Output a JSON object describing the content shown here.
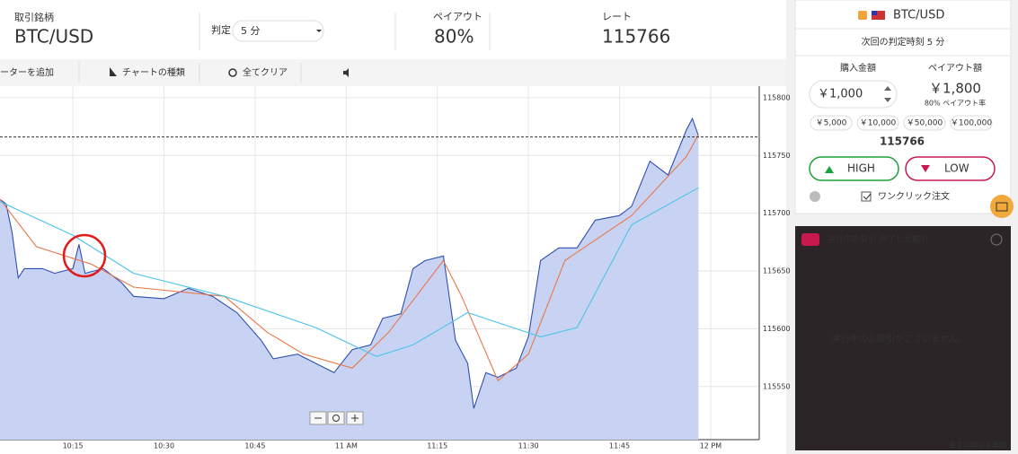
{
  "header": {
    "symbol_label": "取引銘柄",
    "symbol": "BTC/USD",
    "expiry_label": "判定",
    "expiry": "5 分",
    "payout_label": "ペイアウト",
    "payout": "80%",
    "rate_label": "レート",
    "rate": 115766
  },
  "toolbar": {
    "items": [
      "ーターを追加",
      "チャートの種類",
      "全てクリア"
    ]
  },
  "chart": {
    "type": "line",
    "xlim": [
      "10:03",
      "12:08"
    ],
    "ylim": [
      115504,
      115810
    ],
    "yticks": [
      115550,
      115600,
      115650,
      115700,
      115750,
      115800
    ],
    "xticks": [
      "10:15",
      "10:30",
      "10:45",
      {
        "value": "11:00",
        "label": "11 AM"
      },
      "11:15",
      "11:30",
      "11:45",
      {
        "value": "12:00",
        "label": "12 PM"
      }
    ],
    "grid": true,
    "series": [
      {
        "color": "#2f4fb0",
        "area_color": "#c8d3f3",
        "x": [
          "10:03",
          "10:04",
          "10:05",
          "10:06",
          "10:07",
          "10:10",
          "10:12",
          "10:15",
          "10:16",
          "10:17",
          "10:20",
          "10:23",
          "10:25",
          "10:30",
          "10:34",
          "10:38",
          "10:42",
          "10:46",
          "10:48",
          "10:52",
          "10:55",
          "10:58",
          "11:01",
          "11:04",
          "11:06",
          "11:09",
          "11:11",
          "11:13",
          "11:16",
          "11:18",
          "11:20",
          "11:21",
          "11:23",
          "11:25",
          "11:28",
          "11:30",
          "11:32",
          "11:35",
          "11:38",
          "11:41",
          "11:45",
          "11:47",
          "11:50",
          "11:53",
          "11:56",
          "11:57",
          "11:58"
        ],
        "values": [
          115712,
          115708,
          115683,
          115644,
          115652,
          115652,
          115648,
          115652,
          115673,
          115648,
          115652,
          115640,
          115628,
          115626,
          115635,
          115628,
          115614,
          115590,
          115574,
          115578,
          115570,
          115562,
          115582,
          115586,
          115609,
          115613,
          115652,
          115659,
          115663,
          115590,
          115570,
          115531,
          115562,
          115558,
          115566,
          115593,
          115659,
          115670,
          115670,
          115694,
          115698,
          115706,
          115745,
          115733,
          115772,
          115782,
          115767
        ]
      },
      {
        "color": "#e8774a",
        "x": [
          "10:03",
          "10:09",
          "10:18",
          "10:25",
          "10:40",
          "10:47",
          "10:53",
          "11:01",
          "11:07",
          "11:16",
          "11:19",
          "11:25",
          "11:30",
          "11:36",
          "11:47",
          "11:56",
          "11:58"
        ],
        "values": [
          115712,
          115671,
          115656,
          115636,
          115628,
          115597,
          115578,
          115566,
          115597,
          115659,
          115628,
          115555,
          115578,
          115659,
          115698,
          115749,
          115768
        ]
      },
      {
        "color": "#4cc3ea",
        "x": [
          "10:03",
          "10:15",
          "10:25",
          "10:40",
          "10:55",
          "11:05",
          "11:11",
          "11:20",
          "11:32",
          "11:38",
          "11:47",
          "11:58"
        ],
        "values": [
          115710,
          115681,
          115648,
          115628,
          115601,
          115576,
          115586,
          115614,
          115593,
          115601,
          115690,
          115722
        ]
      }
    ]
  },
  "side": {
    "symbol": "BTC/USD",
    "next_expiry": "次回の判定時刻 5 分",
    "amount_label": "購入金額",
    "payout_amount_label": "ペイアウト額",
    "amount": "￥1,000",
    "payout_amount": "￥1,800",
    "payout_rate": "80% ペイアウト率",
    "presets": [
      "￥5,000",
      "￥10,000",
      "￥50,000",
      "￥100,000"
    ],
    "high": "HIGH",
    "low": "LOW",
    "one_click": "ワンクリック注文"
  },
  "trades": {
    "tab_active": "実行中の取引",
    "tab_closed": "終了した取引",
    "empty": "実行中のお取引がございません。",
    "view_all": "全ての取引を確認"
  }
}
